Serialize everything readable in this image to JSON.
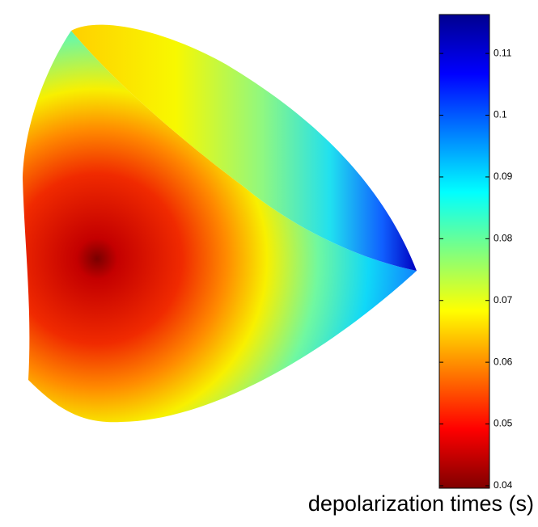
{
  "chart_data": {
    "type": "surface",
    "colorbar_label": "depolarization times (s)",
    "colormap": "jet",
    "clim": [
      0.0396,
      0.1163
    ],
    "cticks": [
      0.04,
      0.05,
      0.06,
      0.07,
      0.08,
      0.09,
      0.1,
      0.11
    ]
  }
}
